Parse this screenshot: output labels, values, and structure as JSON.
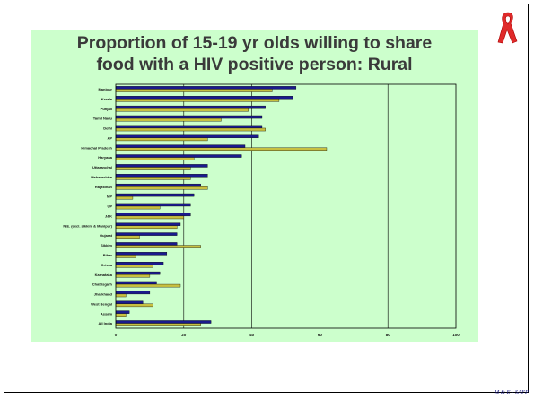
{
  "slide": {
    "footer": "M & E - SAFP"
  },
  "chart_data": {
    "type": "bar",
    "orientation": "horizontal",
    "title": "Proportion of 15-19 yr olds willing to share food with a HIV positive person: Rural",
    "title_lines": [
      "Proportion of 15-19 yr olds willing to share",
      "food with a HIV positive person: Rural"
    ],
    "categories": [
      "Manipur",
      "Kerala",
      "Punjab",
      "Tamil Nadu",
      "Delhi",
      "AP",
      "Himachal Pradesh",
      "Haryana",
      "Uttaranchal",
      "Maharashtra",
      "Rajasthan",
      "MP",
      "UP",
      "J&K",
      "N.E. (excl. sikkim & Manipur)",
      "Gujarat",
      "Sikkim",
      "Bihar",
      "Orissa",
      "Karnataka",
      "Chattisgarh",
      "Jharkhand",
      "West Bengal",
      "Assam",
      "All India"
    ],
    "series": [
      {
        "name": "",
        "color": "#1a1a8c",
        "values": [
          53,
          52,
          44,
          43,
          43,
          42,
          38,
          37,
          27,
          27,
          25,
          23,
          22,
          22,
          19,
          18,
          18,
          15,
          14,
          13,
          12,
          10,
          8,
          4,
          28
        ]
      },
      {
        "name": "",
        "color": "#c8c040",
        "values": [
          46,
          48,
          39,
          31,
          44,
          27,
          62,
          23,
          22,
          22,
          27,
          5,
          13,
          20,
          18,
          7,
          25,
          6,
          11,
          10,
          19,
          3,
          11,
          3,
          25
        ]
      }
    ],
    "xlim": [
      0,
      100
    ],
    "xticks": [
      "0",
      "20",
      "40",
      "60",
      "80",
      "100"
    ],
    "grid": true
  }
}
